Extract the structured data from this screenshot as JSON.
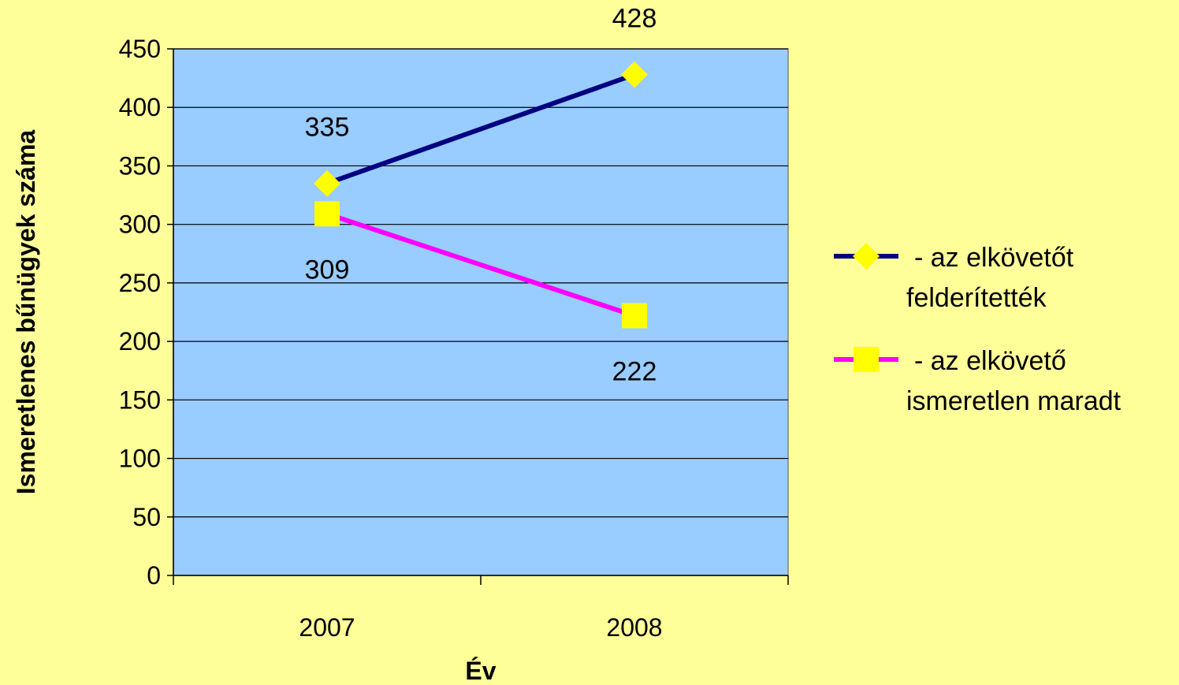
{
  "chart_data": {
    "type": "line",
    "categories": [
      "2007",
      "2008"
    ],
    "series": [
      {
        "name": "- az elkövetőt felderítették",
        "name_lines": [
          "- az elkövetőt",
          "felderítették"
        ],
        "values": [
          335,
          428
        ],
        "color": "#000080",
        "marker": "diamond",
        "marker_color": "#FFFF00"
      },
      {
        "name": "- az elkövető ismeretlen maradt",
        "name_lines": [
          "- az elkövető",
          "ismeretlen maradt"
        ],
        "values": [
          309,
          222
        ],
        "color": "#FF00FF",
        "marker": "square",
        "marker_color": "#FFFF00"
      }
    ],
    "xlabel": "Év",
    "ylabel": "Ismeretlenes bűnügyek száma",
    "ylim": [
      0,
      450
    ],
    "yticks": [
      "0",
      "50",
      "100",
      "150",
      "200",
      "250",
      "300",
      "350",
      "400",
      "450"
    ],
    "grid": true,
    "legend": "right",
    "plot_background": "#99CCFF",
    "page_background": "#FFFF99"
  }
}
